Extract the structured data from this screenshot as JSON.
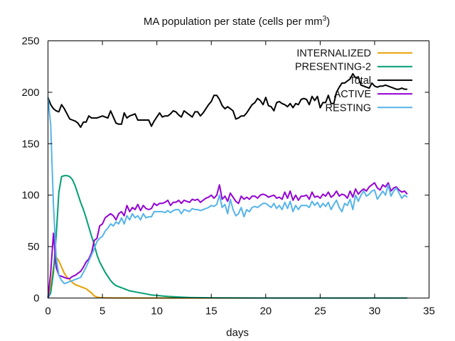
{
  "chart_data": {
    "type": "line",
    "title_main": "MA population per state (cells per mm",
    "title_sup": "3",
    "title_tail": ")",
    "xlabel": "days",
    "ylabel": "",
    "xlim": [
      0,
      35
    ],
    "ylim": [
      0,
      250
    ],
    "xticks": [
      0,
      5,
      10,
      15,
      20,
      25,
      30,
      35
    ],
    "yticks": [
      0,
      50,
      100,
      150,
      200,
      250
    ],
    "grid": false,
    "legend_position": "top-right",
    "series": [
      {
        "name": "INTERNALIZED",
        "color": "#e69f00",
        "x": [
          0,
          0.25,
          0.5,
          0.75,
          1,
          1.25,
          1.5,
          1.75,
          2,
          2.25,
          2.5,
          2.75,
          3,
          3.25,
          3.5,
          3.75,
          4,
          4.25,
          4.5,
          4.75,
          5,
          6,
          8,
          10,
          12,
          15,
          20,
          25,
          30,
          33
        ],
        "y": [
          0,
          12,
          30,
          40,
          36,
          30,
          24,
          20,
          18,
          15,
          13,
          12,
          11,
          10,
          9,
          7,
          5,
          2,
          1,
          0.5,
          0.3,
          0.1,
          0,
          0,
          0,
          0,
          0,
          0,
          0,
          0
        ]
      },
      {
        "name": "PRESENTING-2",
        "color": "#009e73",
        "x": [
          0,
          0.25,
          0.5,
          0.75,
          1,
          1.25,
          1.5,
          1.75,
          2,
          2.25,
          2.5,
          2.75,
          3,
          3.25,
          3.5,
          3.75,
          4,
          4.25,
          4.5,
          4.75,
          5,
          5.25,
          5.5,
          5.75,
          6,
          6.25,
          6.5,
          6.75,
          7,
          7.25,
          7.5,
          7.75,
          8,
          8.5,
          9,
          9.5,
          10,
          10.5,
          11,
          12,
          13,
          15,
          20,
          25,
          30,
          33
        ],
        "y": [
          0,
          5,
          25,
          60,
          103,
          118,
          119,
          119,
          118,
          115,
          109,
          101,
          93,
          86,
          78,
          69,
          60,
          52,
          42,
          35,
          30,
          25,
          21,
          17,
          14,
          12,
          11,
          10,
          9,
          8,
          7,
          6.5,
          6,
          5,
          4,
          3,
          2.5,
          2,
          1.5,
          1,
          0.5,
          0.2,
          0,
          0,
          0,
          0
        ]
      },
      {
        "name": "Total",
        "color": "#000000",
        "x": [
          0,
          0.25,
          0.5,
          0.75,
          1,
          1.25,
          1.5,
          1.75,
          2,
          2.25,
          2.5,
          2.75,
          3,
          3.25,
          3.5,
          3.75,
          4,
          4.25,
          4.5,
          4.75,
          5,
          5.25,
          5.5,
          5.75,
          6,
          6.25,
          6.5,
          6.75,
          7,
          7.25,
          7.5,
          7.75,
          8,
          8.25,
          8.5,
          8.75,
          9,
          9.25,
          9.5,
          9.75,
          10,
          10.25,
          10.5,
          10.75,
          11,
          11.25,
          11.5,
          11.75,
          12,
          12.25,
          12.5,
          12.75,
          13,
          13.25,
          13.5,
          13.75,
          14,
          14.25,
          14.5,
          14.75,
          15,
          15.25,
          15.5,
          15.75,
          16,
          16.25,
          16.5,
          16.75,
          17,
          17.25,
          17.5,
          17.75,
          18,
          18.25,
          18.5,
          18.75,
          19,
          19.25,
          19.5,
          19.75,
          20,
          20.25,
          20.5,
          20.75,
          21,
          21.25,
          21.5,
          21.75,
          22,
          22.25,
          22.5,
          22.75,
          23,
          23.25,
          23.5,
          23.75,
          24,
          24.25,
          24.5,
          24.75,
          25,
          25.25,
          25.5,
          25.75,
          26,
          26.25,
          26.5,
          26.75,
          27,
          27.25,
          27.5,
          27.75,
          28,
          28.25,
          28.5,
          28.75,
          29,
          29.25,
          29.5,
          29.75,
          30,
          30.25,
          30.5,
          30.75,
          31,
          31.25,
          31.5,
          31.75,
          32,
          32.25,
          32.5,
          32.75,
          33
        ],
        "y": [
          195,
          188,
          184,
          182,
          181,
          188,
          184,
          179,
          174,
          173,
          172,
          170,
          166,
          171,
          171,
          177,
          175,
          175,
          175,
          176,
          177,
          176,
          175,
          182,
          176,
          170,
          169,
          169,
          180,
          175,
          177,
          178,
          179,
          173,
          173,
          173,
          173,
          173,
          167,
          172,
          176,
          180,
          176,
          177,
          177,
          179,
          182,
          181,
          178,
          176,
          182,
          180,
          178,
          176,
          181,
          181,
          177,
          180,
          184,
          188,
          191,
          197,
          197,
          193,
          187,
          184,
          186,
          184,
          182,
          174,
          175,
          177,
          177,
          180,
          184,
          188,
          190,
          194,
          192,
          188,
          195,
          187,
          186,
          182,
          190,
          191,
          189,
          188,
          186,
          189,
          185,
          189,
          188,
          193,
          194,
          193,
          188,
          196,
          192,
          196,
          185,
          190,
          190,
          197,
          189,
          189,
          200,
          205,
          209,
          209,
          211,
          213,
          218,
          214,
          215,
          207,
          206,
          205,
          204,
          209,
          206,
          205,
          206,
          206,
          207,
          206,
          205,
          204,
          203,
          203,
          204,
          203,
          203
        ]
      },
      {
        "name": "ACTIVE",
        "color": "#9400d3",
        "x": [
          0,
          0.25,
          0.5,
          0.75,
          1,
          1.25,
          1.5,
          1.75,
          2,
          2.25,
          2.5,
          2.75,
          3,
          3.25,
          3.5,
          3.75,
          4,
          4.25,
          4.5,
          4.75,
          5,
          5.25,
          5.5,
          5.75,
          6,
          6.25,
          6.5,
          6.75,
          7,
          7.25,
          7.5,
          7.75,
          8,
          8.25,
          8.5,
          8.75,
          9,
          9.25,
          9.5,
          9.75,
          10,
          10.25,
          10.5,
          10.75,
          11,
          11.25,
          11.5,
          11.75,
          12,
          12.25,
          12.5,
          12.75,
          13,
          13.25,
          13.5,
          13.75,
          14,
          14.25,
          14.5,
          14.75,
          15,
          15.25,
          15.5,
          15.75,
          16,
          16.25,
          16.5,
          16.75,
          17,
          17.25,
          17.5,
          17.75,
          18,
          18.25,
          18.5,
          18.75,
          19,
          19.25,
          19.5,
          19.75,
          20,
          20.25,
          20.5,
          20.75,
          21,
          21.25,
          21.5,
          21.75,
          22,
          22.25,
          22.5,
          22.75,
          23,
          23.25,
          23.5,
          23.75,
          24,
          24.25,
          24.5,
          24.75,
          25,
          25.25,
          25.5,
          25.75,
          26,
          26.25,
          26.5,
          26.75,
          27,
          27.25,
          27.5,
          27.75,
          28,
          28.25,
          28.5,
          28.75,
          29,
          29.25,
          29.5,
          29.75,
          30,
          30.25,
          30.5,
          30.75,
          31,
          31.25,
          31.5,
          31.75,
          32,
          32.25,
          32.5,
          32.75,
          33
        ],
        "y": [
          0,
          25,
          63,
          30,
          22,
          21,
          20,
          19,
          19,
          21,
          22,
          24,
          26,
          30,
          35,
          38,
          44,
          56,
          58,
          70,
          72,
          78,
          80,
          82,
          80,
          76,
          82,
          84,
          80,
          90,
          84,
          88,
          86,
          91,
          85,
          90,
          87,
          86,
          87,
          92,
          90,
          92,
          92,
          93,
          95,
          90,
          93,
          93,
          95,
          92,
          95,
          94,
          93,
          96,
          95,
          96,
          93,
          95,
          97,
          98,
          100,
          97,
          100,
          110,
          96,
          99,
          94,
          102,
          98,
          94,
          92,
          99,
          96,
          98,
          96,
          99,
          99,
          97,
          100,
          101,
          100,
          98,
          99,
          100,
          97,
          98,
          96,
          103,
          97,
          104,
          95,
          100,
          95,
          99,
          99,
          100,
          96,
          103,
          98,
          99,
          97,
          101,
          99,
          103,
          98,
          100,
          104,
          99,
          101,
          100,
          97,
          104,
          98,
          106,
          101,
          104,
          106,
          104,
          108,
          110,
          112,
          107,
          105,
          110,
          108,
          112,
          104,
          107,
          108,
          105,
          103,
          104,
          101
        ]
      },
      {
        "name": "RESTING",
        "color": "#56b4e9",
        "x": [
          0,
          0.25,
          0.5,
          0.75,
          1,
          1.25,
          1.5,
          1.75,
          2,
          2.25,
          2.5,
          2.75,
          3,
          3.25,
          3.5,
          3.75,
          4,
          4.25,
          4.5,
          4.75,
          5,
          5.25,
          5.5,
          5.75,
          6,
          6.25,
          6.5,
          6.75,
          7,
          7.25,
          7.5,
          7.75,
          8,
          8.25,
          8.5,
          8.75,
          9,
          9.25,
          9.5,
          9.75,
          10,
          10.25,
          10.5,
          10.75,
          11,
          11.25,
          11.5,
          11.75,
          12,
          12.25,
          12.5,
          12.75,
          13,
          13.25,
          13.5,
          13.75,
          14,
          14.25,
          14.5,
          14.75,
          15,
          15.25,
          15.5,
          15.75,
          16,
          16.25,
          16.5,
          16.75,
          17,
          17.25,
          17.5,
          17.75,
          18,
          18.25,
          18.5,
          18.75,
          19,
          19.25,
          19.5,
          19.75,
          20,
          20.25,
          20.5,
          20.75,
          21,
          21.25,
          21.5,
          21.75,
          22,
          22.25,
          22.5,
          22.75,
          23,
          23.25,
          23.5,
          23.75,
          24,
          24.25,
          24.5,
          24.75,
          25,
          25.25,
          25.5,
          25.75,
          26,
          26.25,
          26.5,
          26.75,
          27,
          27.25,
          27.5,
          27.75,
          28,
          28.25,
          28.5,
          28.75,
          29,
          29.25,
          29.5,
          29.75,
          30,
          30.25,
          30.5,
          30.75,
          31,
          31.25,
          31.5,
          31.75,
          32,
          32.25,
          32.5,
          32.75,
          33
        ],
        "y": [
          195,
          168,
          90,
          40,
          22,
          17,
          14,
          15,
          16,
          17,
          18,
          19,
          20,
          25,
          30,
          36,
          42,
          48,
          55,
          58,
          60,
          65,
          68,
          72,
          70,
          74,
          72,
          78,
          72,
          80,
          76,
          82,
          78,
          80,
          76,
          82,
          78,
          79,
          79,
          84,
          84,
          84,
          84,
          83,
          85,
          83,
          85,
          86,
          86,
          82,
          86,
          85,
          84,
          87,
          86,
          86,
          85,
          86,
          87,
          88,
          90,
          89,
          91,
          100,
          88,
          91,
          82,
          96,
          86,
          80,
          82,
          88,
          79,
          86,
          84,
          88,
          89,
          88,
          90,
          92,
          92,
          90,
          88,
          92,
          87,
          90,
          86,
          93,
          87,
          94,
          84,
          90,
          86,
          90,
          90,
          90,
          88,
          94,
          90,
          93,
          88,
          92,
          89,
          93,
          86,
          91,
          95,
          88,
          84,
          92,
          90,
          96,
          86,
          100,
          94,
          100,
          104,
          99,
          101,
          104,
          105,
          96,
          100,
          104,
          100,
          110,
          99,
          104,
          107,
          102,
          97,
          100,
          98
        ]
      }
    ]
  }
}
